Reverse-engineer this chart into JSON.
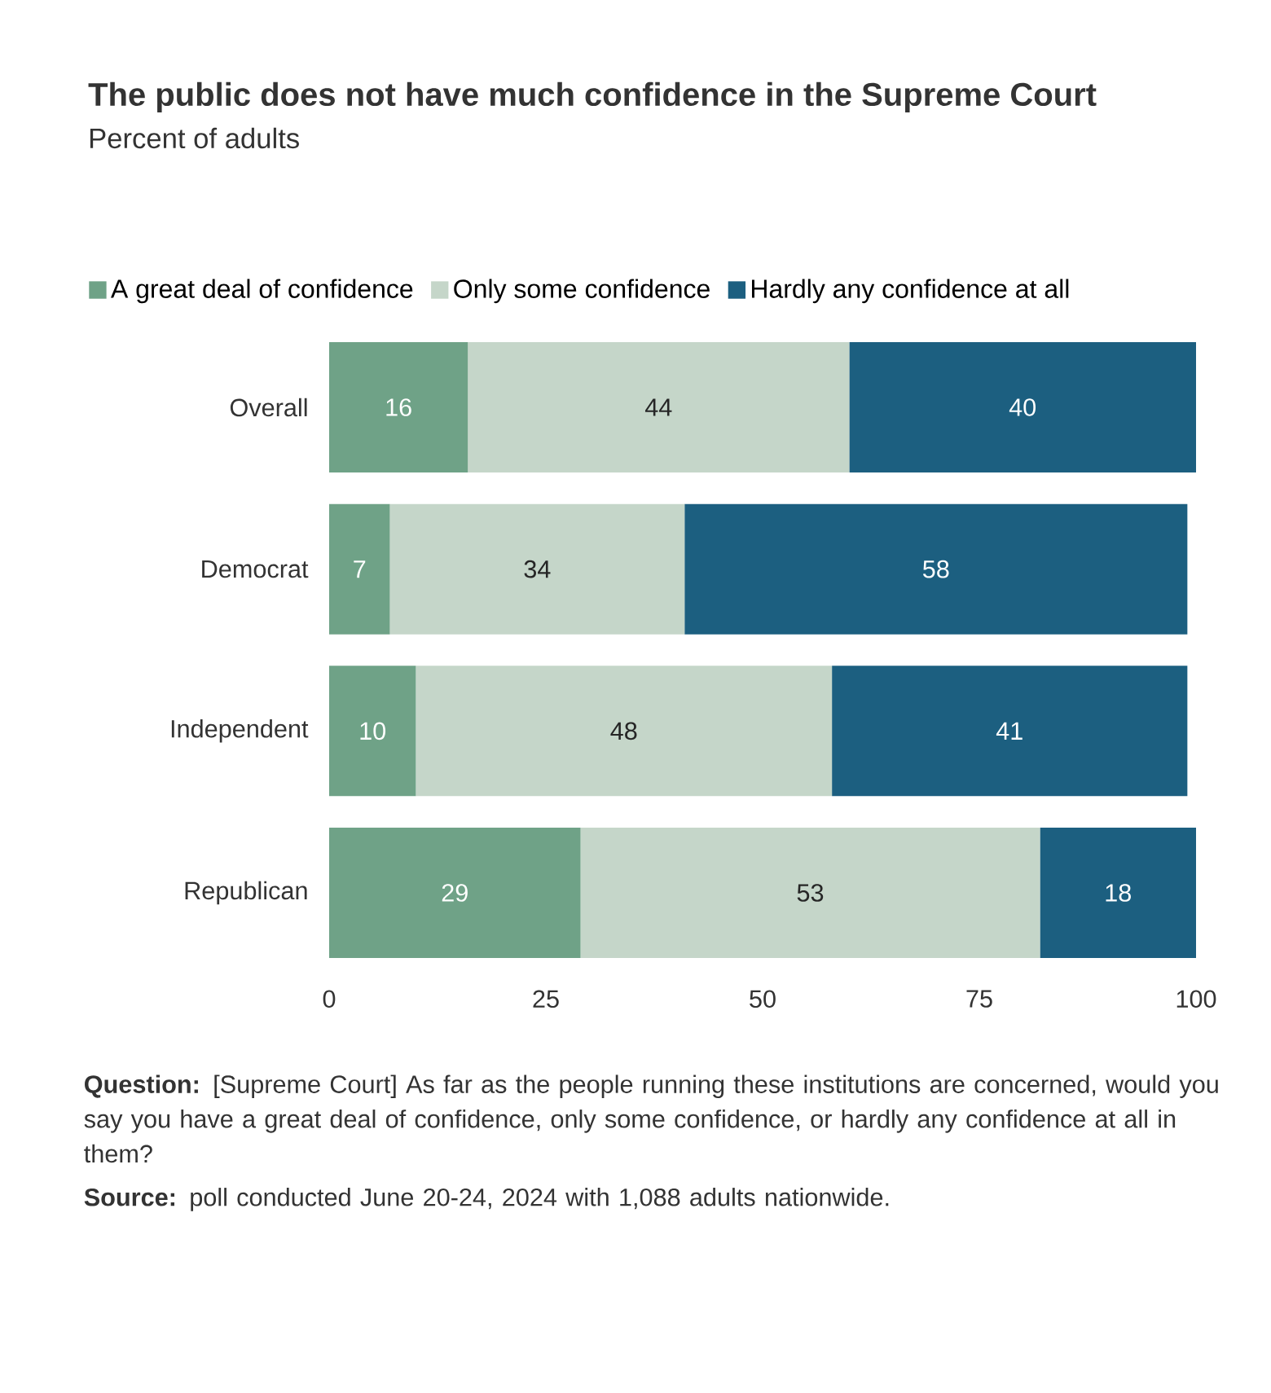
{
  "chart_data": {
    "type": "bar",
    "orientation": "horizontal",
    "stacked": true,
    "title": "The public does not have much confidence in the Supreme Court",
    "subtitle": "Percent of adults",
    "categories": [
      "Overall",
      "Democrat",
      "Independent",
      "Republican"
    ],
    "series": [
      {
        "name": "A great deal of confidence",
        "color": "#6fa287",
        "values": [
          16,
          7,
          10,
          29
        ]
      },
      {
        "name": "Only some confidence",
        "color": "#c5d6c9",
        "values": [
          44,
          34,
          48,
          53
        ]
      },
      {
        "name": "Hardly any confidence at all",
        "color": "#1c5f80",
        "values": [
          40,
          58,
          41,
          18
        ]
      }
    ],
    "xlim": [
      0,
      100
    ],
    "xticks": [
      0,
      25,
      50,
      75,
      100
    ],
    "data_labels": true,
    "legend": "top",
    "grid": false,
    "annotations": [
      "**Question:** [Supreme Court] As far as the people running these institutions are concerned, would you say you have a great deal of confidence, only some confidence, or hardly any confidence at all in them?",
      "**Source:** poll conducted June 20-24, 2024 with 1,088 adults nationwide."
    ]
  }
}
